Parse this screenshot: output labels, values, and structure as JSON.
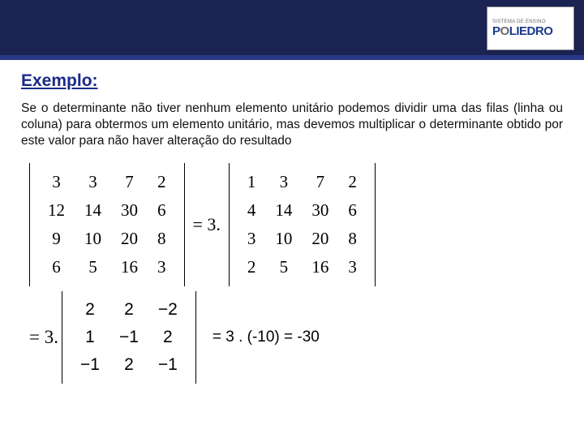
{
  "header": {
    "bg_color": "#1a2352",
    "border_color": "#2a3a8a",
    "logo_small": "SISTEMA DE ENSINO",
    "logo_main_a": "P",
    "logo_main_b": "O",
    "logo_main_c": "LIEDRO",
    "logo_color_primary": "#1a3a8a",
    "logo_color_secondary": "#6a6a6a"
  },
  "title": {
    "text": "Exemplo:",
    "color": "#1a2a8a",
    "fontsize": 21
  },
  "paragraph": {
    "text": "Se o determinante não tiver nenhum elemento unitário podemos dividir uma das filas (linha ou coluna) para obtermos um elemento unitário, mas devemos multiplicar o determinante obtido por este valor para não haver alteração do resultado",
    "fontsize": 15.5
  },
  "eq1": {
    "detA": {
      "rows": [
        [
          "3",
          "3",
          "7",
          "2"
        ],
        [
          "12",
          "14",
          "30",
          "6"
        ],
        [
          "9",
          "10",
          "20",
          "8"
        ],
        [
          "6",
          "5",
          "16",
          "3"
        ]
      ]
    },
    "mid": "= 3.",
    "detB": {
      "rows": [
        [
          "1",
          "3",
          "7",
          "2"
        ],
        [
          "4",
          "14",
          "30",
          "6"
        ],
        [
          "3",
          "10",
          "20",
          "8"
        ],
        [
          "2",
          "5",
          "16",
          "3"
        ]
      ]
    }
  },
  "eq2": {
    "lead": "= 3.",
    "detC": {
      "rows": [
        [
          "2",
          "2",
          "−2"
        ],
        [
          "1",
          "−1",
          "2"
        ],
        [
          "−1",
          "2",
          "−1"
        ]
      ]
    },
    "final": "= 3 . (-10) = -30"
  },
  "style": {
    "math_font": "Times New Roman",
    "math_fontsize": 22,
    "para_font": "Arial"
  }
}
